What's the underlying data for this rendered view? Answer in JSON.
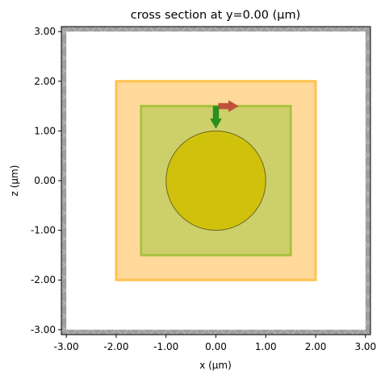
{
  "chart_data": {
    "type": "structure",
    "title": "cross section at y=0.00 (μm)",
    "xlabel": "x (μm)",
    "ylabel": "z (μm)",
    "xlim": [
      -3.1,
      3.1
    ],
    "ylim": [
      -3.1,
      3.1
    ],
    "xticks": [
      {
        "value": -3,
        "label": "-3.00"
      },
      {
        "value": -2,
        "label": "-2.00"
      },
      {
        "value": -1,
        "label": "-1.00"
      },
      {
        "value": 0,
        "label": "0.00"
      },
      {
        "value": 1,
        "label": "1.00"
      },
      {
        "value": 2,
        "label": "2.00"
      },
      {
        "value": 3,
        "label": "3.00"
      }
    ],
    "yticks": [
      {
        "value": -3,
        "label": "-3.00"
      },
      {
        "value": -2,
        "label": "-2.00"
      },
      {
        "value": -1,
        "label": "-1.00"
      },
      {
        "value": 0,
        "label": "0.00"
      },
      {
        "value": 1,
        "label": "1.00"
      },
      {
        "value": 2,
        "label": "2.00"
      },
      {
        "value": 3,
        "label": "3.00"
      }
    ],
    "boundary": {
      "thickness": 0.1,
      "color": "#9e9e9e"
    },
    "boxes": [
      {
        "x": [
          -2,
          2
        ],
        "z": [
          -2,
          2
        ],
        "fill": "#ffd999",
        "edge": "#ffc24d"
      },
      {
        "x": [
          -1.5,
          1.5
        ],
        "z": [
          -1.5,
          1.5
        ],
        "fill": "#cdd06a",
        "edge": "#a9c23f"
      }
    ],
    "circles": [
      {
        "center": [
          0,
          0
        ],
        "radius": 1,
        "fill": "#d0c20c",
        "edge": "#6b6420"
      }
    ],
    "arrows": [
      {
        "start": [
          0.05,
          1.5
        ],
        "end": [
          0.45,
          1.5
        ],
        "color": "#c0503a"
      },
      {
        "start": [
          0,
          1.5
        ],
        "end": [
          0,
          1.05
        ],
        "color": "#2a8f1e"
      }
    ]
  }
}
